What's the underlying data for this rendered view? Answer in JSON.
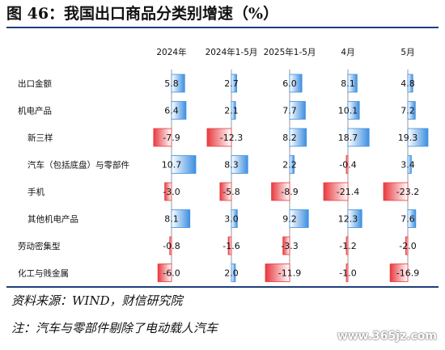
{
  "title": "图 46：我国出口商品分类别增速（%）",
  "source": "资料来源：WIND，财信研究院",
  "note": "注：汽车与零部件剔除了电动载人汽车",
  "watermark": "www.365jz.com",
  "colors": {
    "positive": "#3d8fe0",
    "negative": "#e8393f",
    "rule": "#1f3f7a"
  },
  "chart_data": {
    "type": "bar",
    "orientation": "horizontal",
    "layout": "small-multiples",
    "columns": [
      "2024年",
      "2024年1-5月",
      "2025年1-5月",
      "4月",
      "5月"
    ],
    "categories": [
      "出口金额",
      "机电产品",
      "新三样",
      "汽车（包括底盘）与零部件",
      "手机",
      "其他机电产品",
      "劳动密集型",
      "化工与贱金属"
    ],
    "category_indent": [
      false,
      false,
      true,
      true,
      true,
      true,
      false,
      false
    ],
    "series": [
      {
        "name": "2024年",
        "values": [
          5.8,
          6.4,
          -7.9,
          10.7,
          -3.0,
          8.1,
          -0.8,
          -6.0
        ]
      },
      {
        "name": "2024年1-5月",
        "values": [
          2.7,
          2.1,
          -12.3,
          8.3,
          -5.8,
          3.0,
          -1.6,
          2.0
        ]
      },
      {
        "name": "2025年1-5月",
        "values": [
          6.0,
          7.7,
          8.2,
          2.2,
          -8.9,
          9.2,
          -3.3,
          -11.9
        ]
      },
      {
        "name": "4月",
        "values": [
          8.1,
          10.1,
          18.7,
          -0.4,
          -21.4,
          12.3,
          -1.2,
          -1.0
        ]
      },
      {
        "name": "5月",
        "values": [
          4.8,
          7.2,
          19.3,
          3.4,
          -23.2,
          7.6,
          -2.0,
          -16.9
        ]
      }
    ]
  }
}
